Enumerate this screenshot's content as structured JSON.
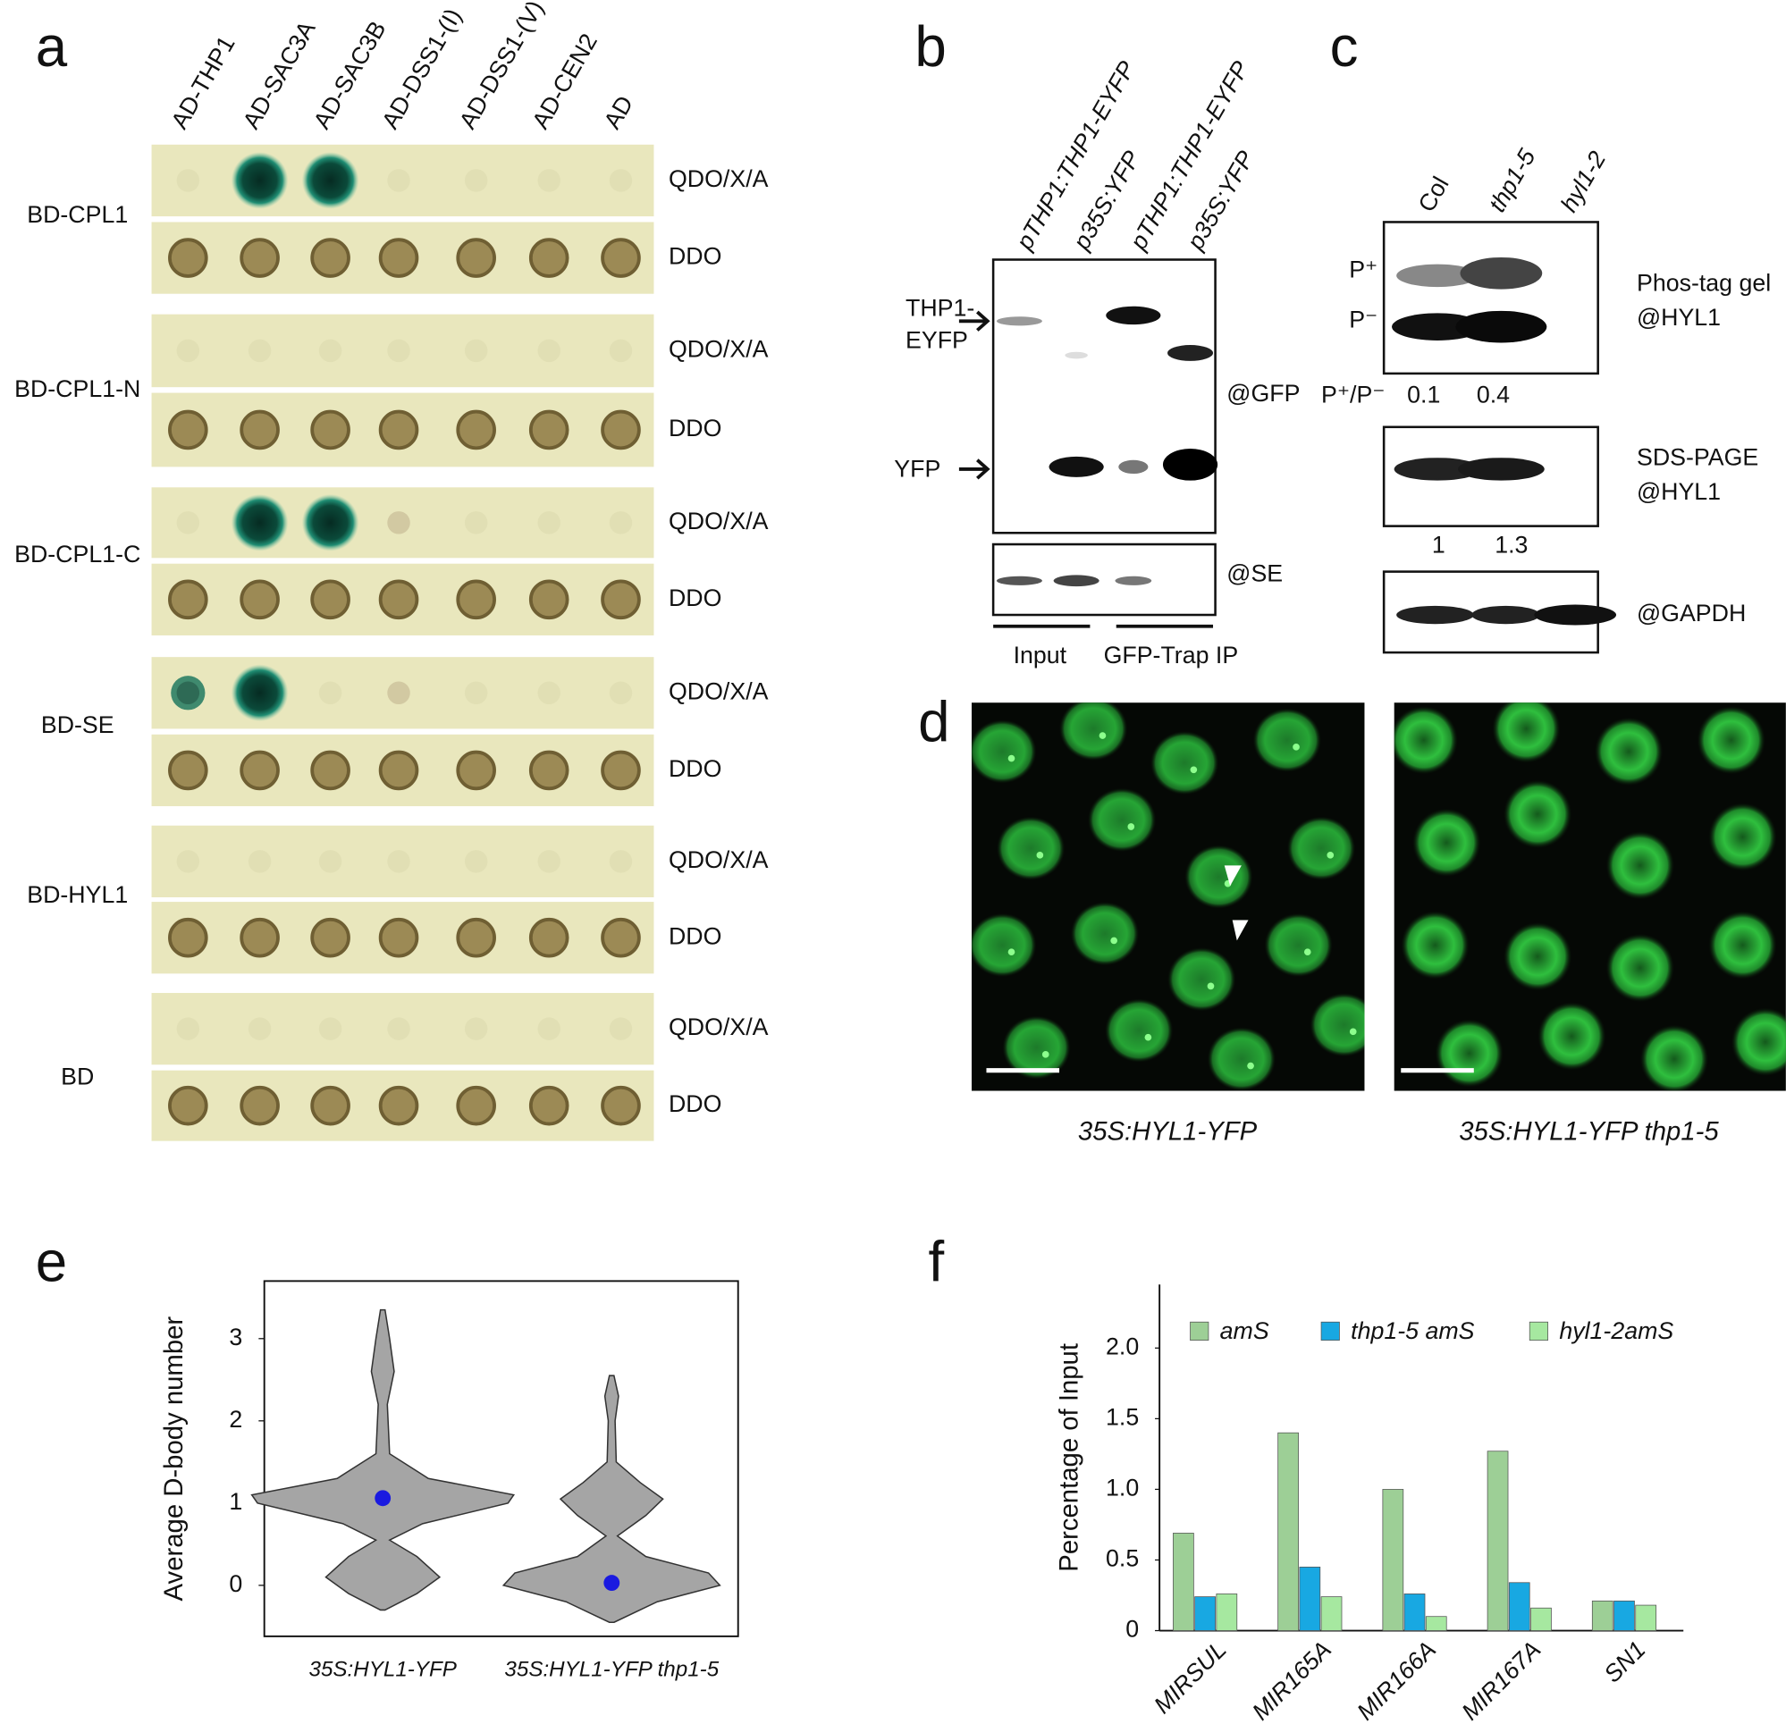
{
  "panel_labels": [
    "a",
    "b",
    "c",
    "d",
    "e",
    "f"
  ],
  "panel_a": {
    "columns": [
      "AD-THP1",
      "AD-SAC3A",
      "AD-SAC3B",
      "AD-DSS1-(I)",
      "AD-DSS1-(V)",
      "AD-CEN2",
      "AD"
    ],
    "rows": [
      "BD-CPL1",
      "BD-CPL1-N",
      "BD-CPL1-C",
      "BD-SE",
      "BD-HYL1",
      "BD"
    ],
    "media": [
      "QDO/X/A",
      "DDO"
    ]
  },
  "panel_b": {
    "lanes": [
      "pTHP1:THP1-EYFP",
      "p35S:YFP",
      "pTHP1:THP1-EYFP",
      "p35S:YFP"
    ],
    "markers": [
      "THP1-",
      "EYFP",
      "YFP"
    ],
    "antibodies": [
      "@GFP",
      "@SE"
    ],
    "groups": [
      "Input",
      "GFP-Trap IP"
    ]
  },
  "panel_c": {
    "lanes": [
      "Col",
      "thp1-5",
      "hyl1-2"
    ],
    "bands": [
      "P⁺",
      "P⁻"
    ],
    "ratio_label": "P⁺/P⁻",
    "ratios": [
      0.1,
      0.4
    ],
    "levels": [
      1,
      1.3
    ],
    "blot_labels": [
      "Phos-tag gel",
      "@HYL1",
      "SDS-PAGE",
      "@HYL1",
      "@GAPDH"
    ]
  },
  "panel_d": {
    "captions": [
      "35S:HYL1-YFP",
      "35S:HYL1-YFP thp1-5"
    ]
  },
  "chart_data": [
    {
      "type": "violin",
      "ylabel": "Average D-body number",
      "categories": [
        "35S:HYL1-YFP",
        "35S:HYL1-YFP thp1-5"
      ],
      "means": [
        1.06,
        0.03
      ],
      "mean_color": "#1a1ae0",
      "ylim": [
        -0.62,
        3.7
      ],
      "yticks": [
        0,
        1,
        2,
        3
      ]
    },
    {
      "type": "bar",
      "ylabel": "Percentage of Input",
      "categories": [
        "MIRSUL",
        "MIR165A",
        "MIR166A",
        "MIR167A",
        "SN1"
      ],
      "series": [
        {
          "name": "amS",
          "color": "#9dcf96",
          "values": [
            0.69,
            1.4,
            1.0,
            1.27,
            0.21
          ]
        },
        {
          "name": "thp1-5 amS",
          "color": "#18a8e2",
          "values": [
            0.24,
            0.45,
            0.26,
            0.34,
            0.21
          ]
        },
        {
          "name": "hyl1-2amS",
          "color": "#a6e8a0",
          "values": [
            0.26,
            0.24,
            0.1,
            0.16,
            0.18
          ]
        }
      ],
      "ylim": [
        0,
        2.45
      ],
      "yticks": [
        0,
        0.5,
        {
          "value": 1,
          "label": "1.0"
        },
        1.5,
        {
          "value": 2,
          "label": "2.0"
        }
      ]
    }
  ]
}
